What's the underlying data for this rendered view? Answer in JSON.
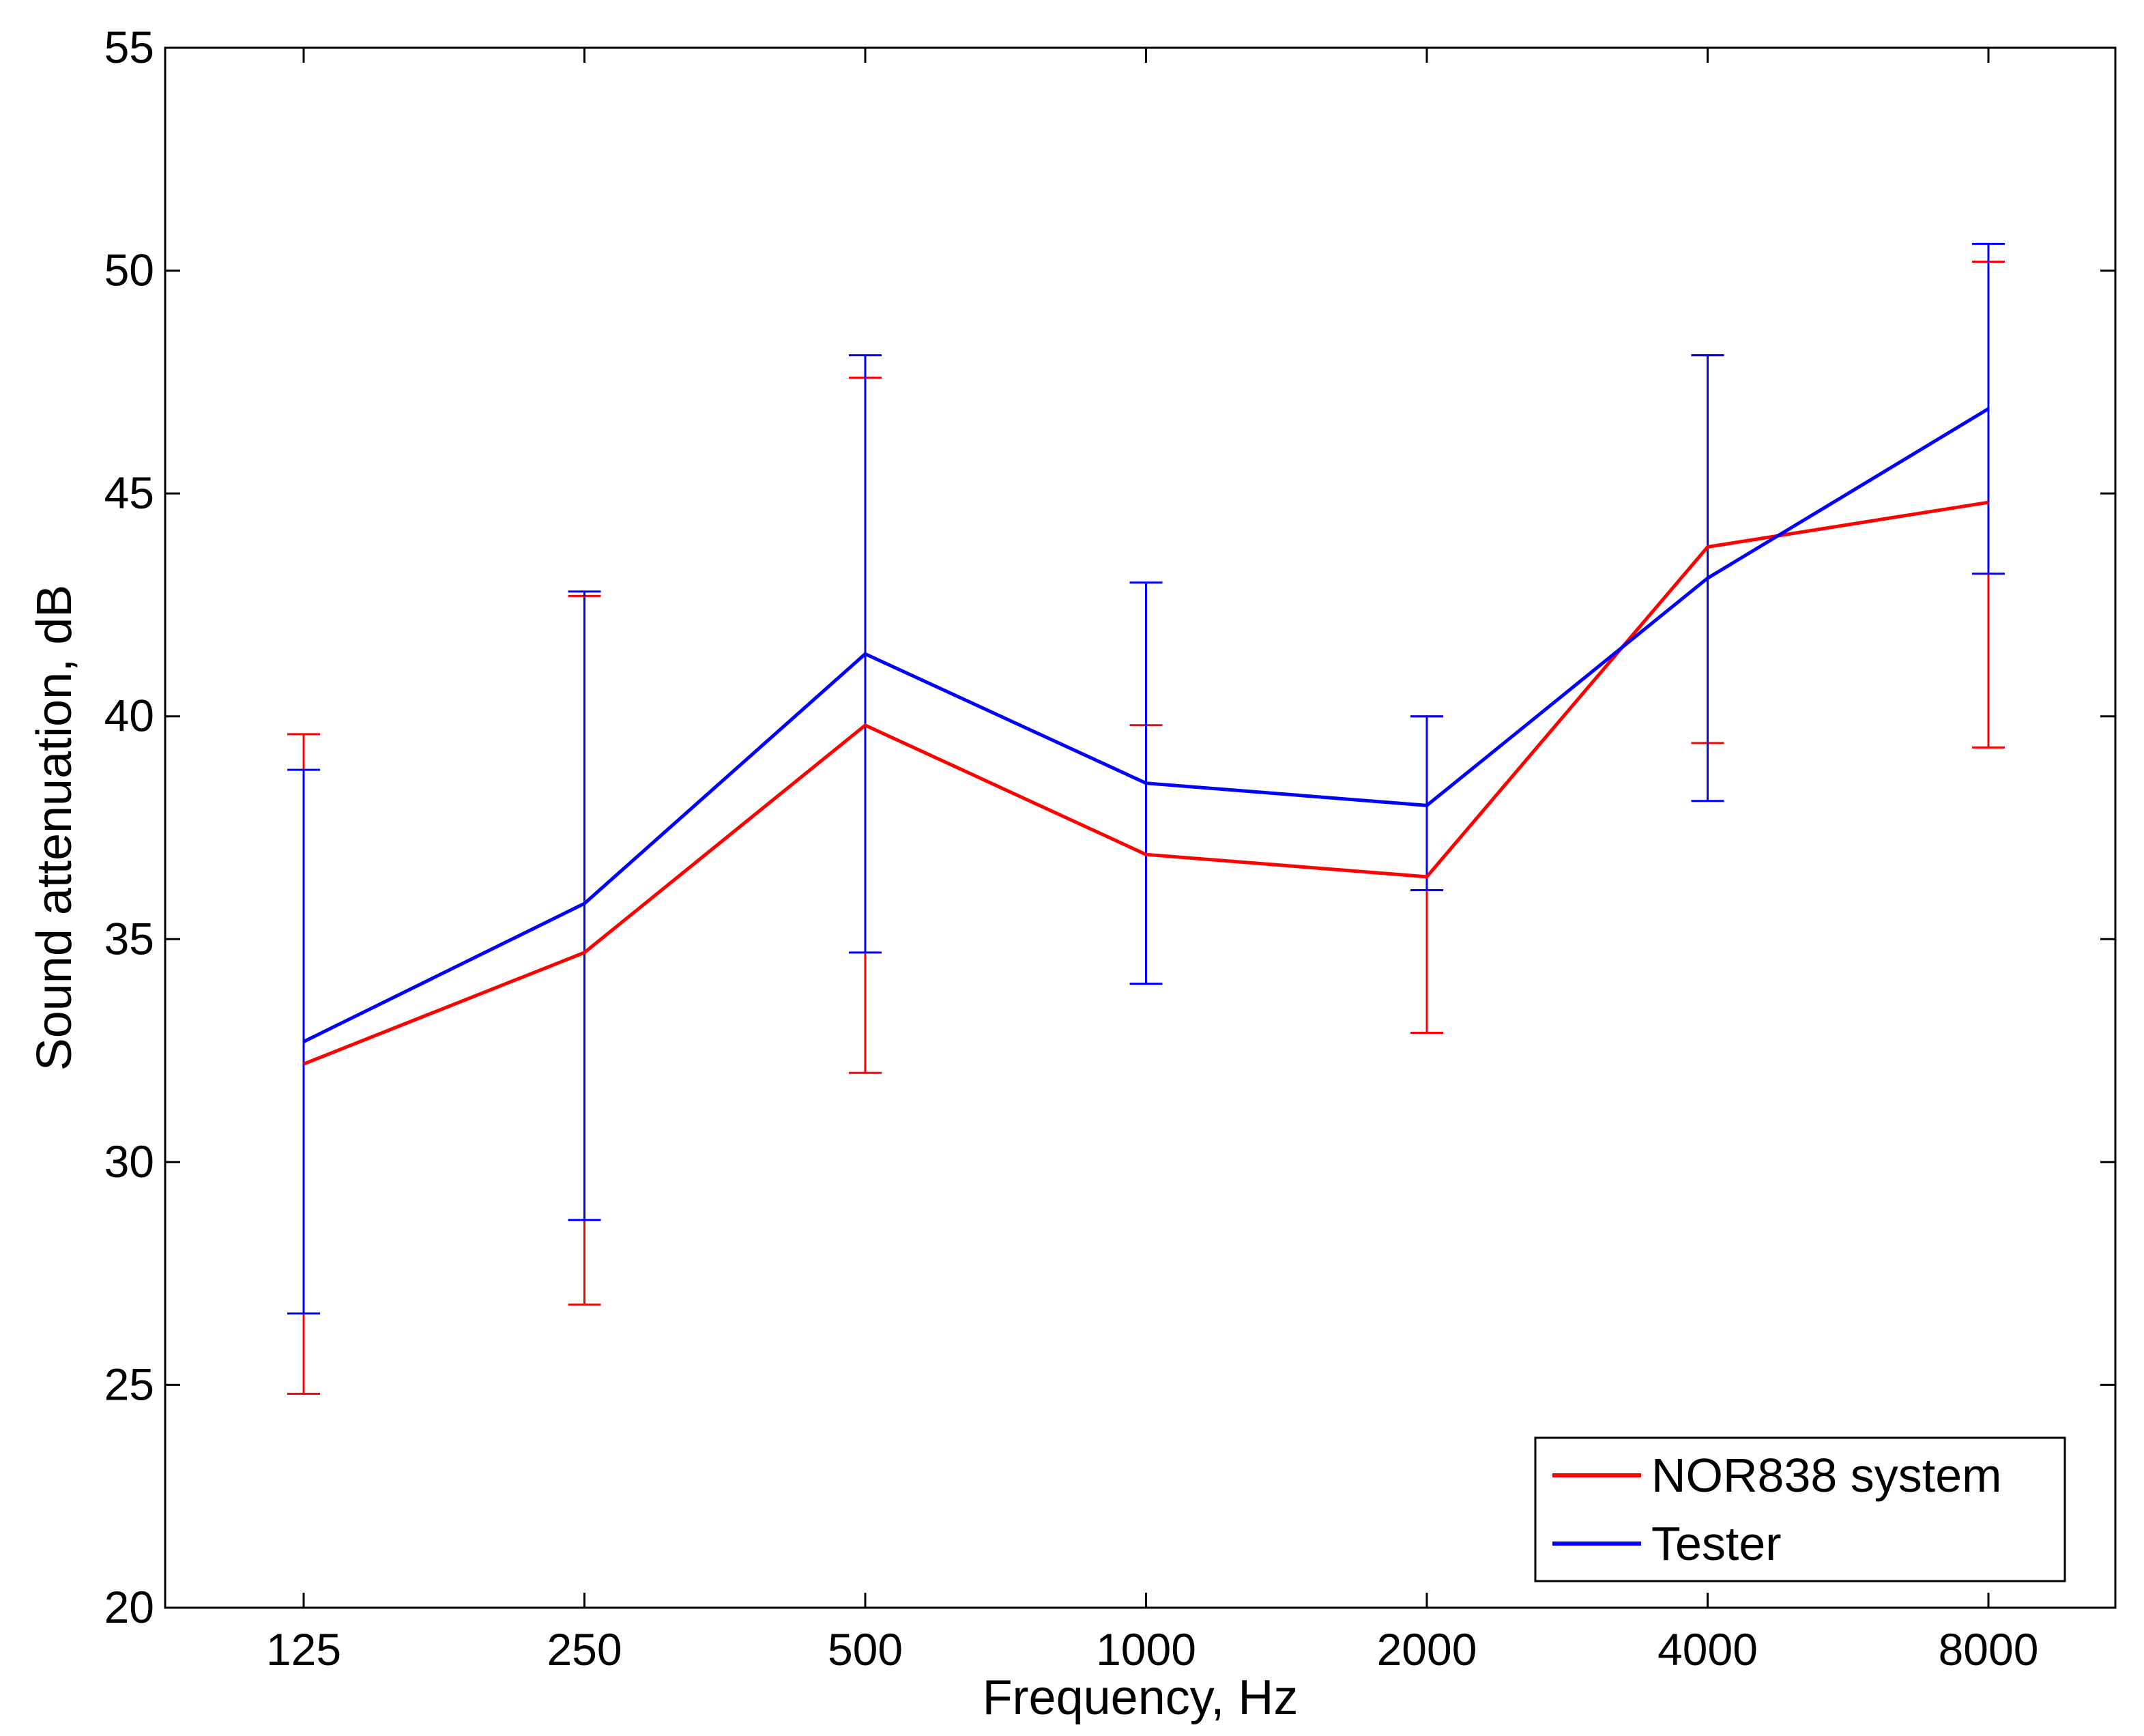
{
  "chart_data": {
    "type": "line",
    "xlabel": "Frequency, Hz",
    "ylabel": "Sound attenuation, dB",
    "categories": [
      "125",
      "250",
      "500",
      "1000",
      "2000",
      "4000",
      "8000"
    ],
    "ylim": [
      20,
      55
    ],
    "yticks": [
      20,
      25,
      30,
      35,
      40,
      45,
      50,
      55
    ],
    "grid": false,
    "legend_position": "bottom-right",
    "series": [
      {
        "name": "NOR838 system",
        "color": "#ff0000",
        "values": [
          32.2,
          34.7,
          39.8,
          36.9,
          36.4,
          43.8,
          44.8
        ],
        "err_low": [
          24.8,
          26.8,
          32.0,
          34.0,
          32.9,
          39.4,
          39.3
        ],
        "err_high": [
          39.6,
          42.7,
          47.6,
          39.8,
          40.0,
          48.1,
          50.2
        ]
      },
      {
        "name": "Tester",
        "color": "#0000ff",
        "values": [
          32.7,
          35.8,
          41.4,
          38.5,
          38.0,
          43.1,
          46.9
        ],
        "err_low": [
          26.6,
          28.7,
          34.7,
          34.0,
          36.1,
          38.1,
          43.2
        ],
        "err_high": [
          38.8,
          42.8,
          48.1,
          43.0,
          40.0,
          48.1,
          50.6
        ]
      }
    ]
  }
}
